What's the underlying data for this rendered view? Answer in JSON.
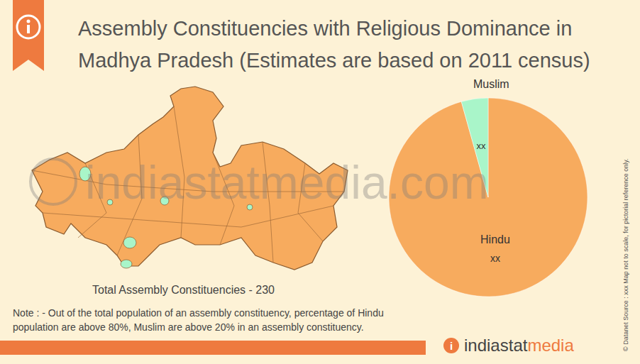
{
  "header": {
    "title_lines": [
      "Assembly Constituencies with Religious Dominance in",
      "Madhya Pradesh (Estimates are based on 2011 census)"
    ]
  },
  "watermark": "indiastatmedia.com",
  "map": {
    "total_label": "Total Assembly Constituencies - 230"
  },
  "note": [
    "Note : - Out of the total population of an assembly constituency, percentage of Hindu",
    "population are above 80%, Muslim are above 20% in an assembly constituency."
  ],
  "side_text": {
    "copyright": "© Datanet",
    "source": "Source : xxx",
    "disclaimer": "Map not to scale, for pictorial reference only."
  },
  "logo": {
    "part1": "indiastat",
    "part2": "media"
  },
  "chart_data": {
    "type": "pie",
    "categories": [
      "Hindu",
      "Muslim"
    ],
    "values": [
      220,
      10
    ],
    "value_labels": [
      "xx",
      "xx"
    ],
    "colors": [
      "#f7ab5e",
      "#a9f5c9"
    ],
    "data_labels": true
  }
}
